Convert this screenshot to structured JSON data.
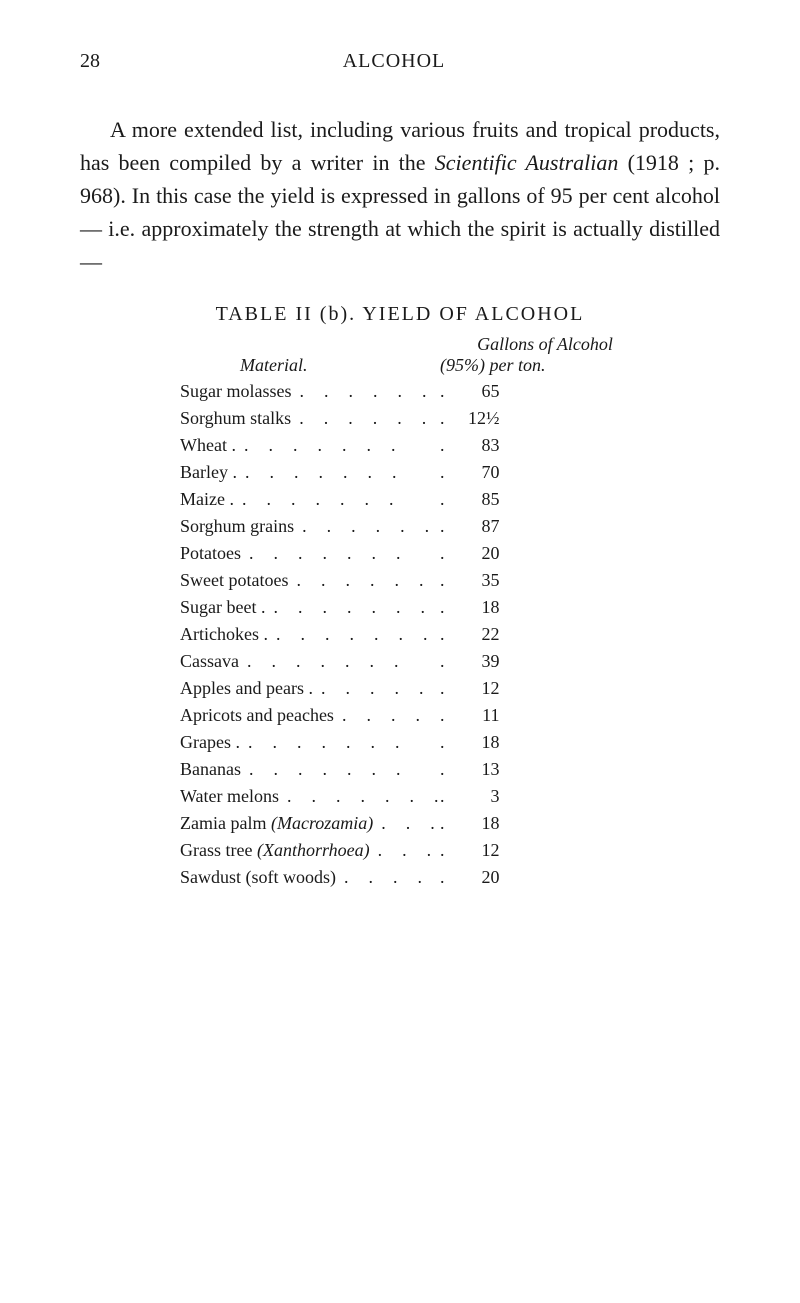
{
  "header": {
    "pageNumber": "28",
    "title": "ALCOHOL"
  },
  "paragraph": {
    "part1": "A more extended list, including various fruits and tropical products, has been compiled by a writer in the ",
    "italic1": "Scientific Australian ",
    "part2": "(1918 ; p. 968). In this case the yield is expressed in gallons of 95 per cent alcohol— i.e. approximately the strength at which the spirit is actually distilled—"
  },
  "table": {
    "title": "TABLE II (b).  YIELD OF ALCOHOL",
    "headers": {
      "material": "Material.",
      "valueL1": "Gallons of Alcohol",
      "valueL2": "(95%) per ton."
    },
    "rows": [
      {
        "material": "Sugar molasses",
        "value": "65"
      },
      {
        "material": "Sorghum stalks",
        "value": "12½"
      },
      {
        "material": "Wheat .",
        "value": "83"
      },
      {
        "material": "Barley .",
        "value": "70"
      },
      {
        "material": "Maize .",
        "value": "85"
      },
      {
        "material": "Sorghum grains",
        "value": "87"
      },
      {
        "material": "Potatoes",
        "value": "20"
      },
      {
        "material": "Sweet potatoes",
        "value": "35"
      },
      {
        "material": "Sugar beet .",
        "value": "18"
      },
      {
        "material": "Artichokes .",
        "value": "22"
      },
      {
        "material": "Cassava",
        "value": "39"
      },
      {
        "material": "Apples and pears .",
        "value": "12"
      },
      {
        "material": "Apricots and peaches",
        "value": "11"
      },
      {
        "material": "Grapes .",
        "value": "18"
      },
      {
        "material": "Bananas",
        "value": "13"
      },
      {
        "material": "Water melons",
        "value": "3"
      },
      {
        "material": "Zamia palm (Macrozamia)",
        "value": "18",
        "italic_part": "(Macrozamia)",
        "plain_part": "Zamia palm "
      },
      {
        "material": "Grass tree (Xanthorrhoea)",
        "value": "12",
        "italic_part": "(Xanthorrhoea)",
        "plain_part": "Grass tree "
      },
      {
        "material": "Sawdust (soft woods)",
        "value": "20"
      }
    ]
  }
}
